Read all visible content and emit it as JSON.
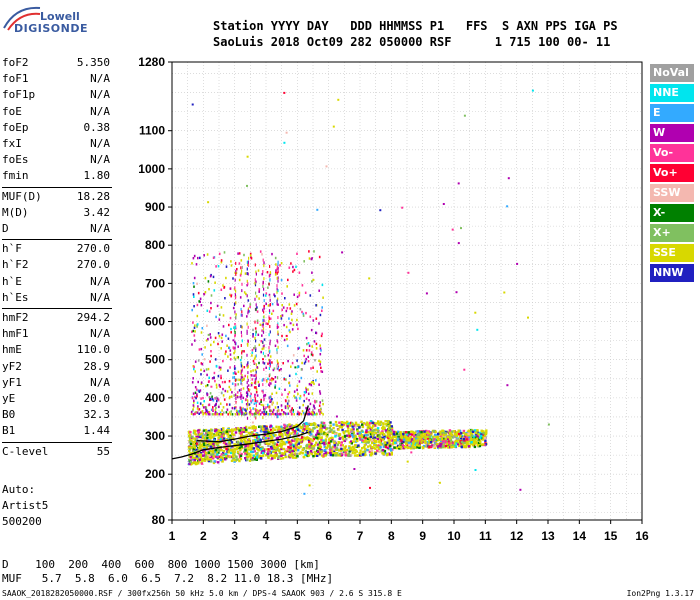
{
  "logo": {
    "line1": "Lowell",
    "line2": "DIGISONDE"
  },
  "header": {
    "line1": "Station YYYY DAY   DDD HHMMSS P1   FFS  S AXN PPS IGA PS",
    "line2": "SaoLuis 2018 Oct09 282 050000 RSF      1 715 100 00- 11"
  },
  "params": [
    {
      "name": "foF2",
      "value": "5.350"
    },
    {
      "name": "foF1",
      "value": "N/A"
    },
    {
      "name": "foF1p",
      "value": "N/A"
    },
    {
      "name": "foE",
      "value": "N/A"
    },
    {
      "name": "foEp",
      "value": "0.38"
    },
    {
      "name": "fxI",
      "value": "N/A"
    },
    {
      "name": "foEs",
      "value": "N/A"
    },
    {
      "name": "fmin",
      "value": "1.80"
    },
    {
      "name": "MUF(D)",
      "value": "18.28"
    },
    {
      "name": "M(D)",
      "value": "3.42"
    },
    {
      "name": "D",
      "value": "N/A"
    },
    {
      "name": "h`F",
      "value": "270.0"
    },
    {
      "name": "h`F2",
      "value": "270.0"
    },
    {
      "name": "h`E",
      "value": "N/A"
    },
    {
      "name": "h`Es",
      "value": "N/A"
    },
    {
      "name": "hmF2",
      "value": "294.2"
    },
    {
      "name": "hmF1",
      "value": "N/A"
    },
    {
      "name": "hmE",
      "value": "110.0"
    },
    {
      "name": "yF2",
      "value": "28.9"
    },
    {
      "name": "yF1",
      "value": "N/A"
    },
    {
      "name": "yE",
      "value": "20.0"
    },
    {
      "name": "B0",
      "value": "32.3"
    },
    {
      "name": "B1",
      "value": "1.44"
    },
    {
      "name": "C-level",
      "value": "55"
    }
  ],
  "auto": {
    "line1": "Auto:",
    "line2": "Artist5",
    "line3": "500200"
  },
  "dmuf": {
    "d_line": "D    100  200  400  600  800 1000 1500 3000 [km]",
    "muf_line": "MUF   5.7  5.8  6.0  6.5  7.2  8.2 11.0 18.3 [MHz]"
  },
  "footer": {
    "left": "SAAOK_2018282050000.RSF / 300fx256h 50 kHz 5.0 km / DPS-4 SAAOK 903 / 2.6 S 315.8 E",
    "right": "Ion2Png 1.3.17"
  },
  "legend": [
    {
      "label": "NoVal",
      "color": "#a0a0a0"
    },
    {
      "label": "NNE",
      "color": "#00e5ee"
    },
    {
      "label": "E",
      "color": "#33aaff"
    },
    {
      "label": "W",
      "color": "#b000b0"
    },
    {
      "label": "Vo-",
      "color": "#ff3399"
    },
    {
      "label": "Vo+",
      "color": "#ff0033"
    },
    {
      "label": "SSW",
      "color": "#f4b8b0"
    },
    {
      "label": "X-",
      "color": "#008000"
    },
    {
      "label": "X+",
      "color": "#80c060"
    },
    {
      "label": "SSE",
      "color": "#d8d800"
    },
    {
      "label": "NNW",
      "color": "#2020c0"
    }
  ],
  "chart_data": {
    "type": "scatter",
    "xlim": [
      1,
      16
    ],
    "ylim": [
      80,
      1280
    ],
    "xticks": [
      "1",
      "2",
      "3",
      "4",
      "5",
      "6",
      "7",
      "8",
      "9",
      "10",
      "11",
      "12",
      "13",
      "14",
      "15",
      "16"
    ],
    "yticks": [
      "80",
      "200",
      "300",
      "400",
      "500",
      "600",
      "700",
      "800",
      "900",
      "1000",
      "1100",
      "1280"
    ],
    "grid": true,
    "legend_position": "right",
    "trace": {
      "x": [
        1.0,
        1.3,
        1.6,
        1.8,
        2.0,
        2.5,
        3.0,
        3.5,
        4.0,
        4.5,
        5.0,
        5.35
      ],
      "y": [
        240,
        245,
        252,
        258,
        264,
        270,
        275,
        280,
        286,
        292,
        300,
        310
      ]
    },
    "profile": {
      "x": [
        1.8,
        2.5,
        3.0,
        3.5,
        4.0,
        4.5,
        5.0,
        5.2,
        5.35
      ],
      "y": [
        288,
        285,
        292,
        300,
        305,
        312,
        325,
        340,
        380
      ]
    }
  }
}
